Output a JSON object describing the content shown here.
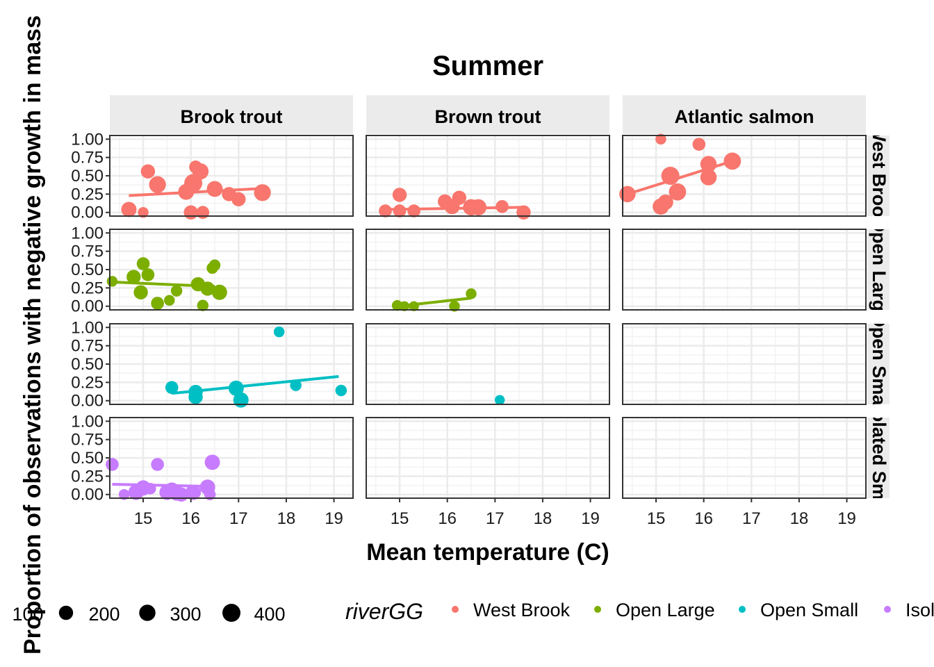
{
  "chart_data": {
    "type": "scatter",
    "title": "Summer",
    "xlabel": "Mean temperature (C)",
    "ylabel": "Proportion of observations with negative growth in mass",
    "xlim": [
      14.3,
      19.4
    ],
    "ylim": [
      -0.05,
      1.05
    ],
    "x_ticks": [
      15,
      16,
      17,
      18,
      19
    ],
    "y_ticks": [
      0.0,
      0.25,
      0.5,
      0.75,
      1.0
    ],
    "y_tick_labels": [
      "0.00",
      "0.25",
      "0.50",
      "0.75",
      "1.00"
    ],
    "grid": true,
    "facet_columns": [
      "Brook trout",
      "Brown trout",
      "Atlantic salmon"
    ],
    "facet_rows": [
      "West Brook",
      "Open Large",
      "Open Small",
      "Isolated Small"
    ],
    "facet_row_strip_labels": [
      "West Brook",
      "Open Large",
      "Open Small",
      "Isolated Small"
    ],
    "series_colors": {
      "West Brook": "#F8766D",
      "Open Large": "#7CAE00",
      "Open Small": "#00BFC4",
      "Isolated Small": "#C77CFF"
    },
    "size_legend": {
      "labels": [
        "100",
        "200",
        "300",
        "400"
      ],
      "values": [
        100,
        200,
        300,
        400
      ],
      "placement": "bottom"
    },
    "color_legend": {
      "title": "riverGG",
      "entries": [
        "West Brook",
        "Open Large",
        "Open Small",
        "Isolated Small"
      ],
      "placement": "bottom"
    },
    "panels": [
      {
        "row": 0,
        "col": 0,
        "river": "West Brook",
        "species": "Brook trout",
        "points": [
          [
            14.7,
            0.04,
            250
          ],
          [
            15.0,
            0.0,
            80
          ],
          [
            15.1,
            0.56,
            200
          ],
          [
            15.3,
            0.38,
            330
          ],
          [
            15.9,
            0.28,
            280
          ],
          [
            16.0,
            0.0,
            200
          ],
          [
            16.05,
            0.4,
            400
          ],
          [
            16.1,
            0.62,
            150
          ],
          [
            16.2,
            0.56,
            300
          ],
          [
            16.25,
            0.0,
            150
          ],
          [
            16.5,
            0.32,
            280
          ],
          [
            16.8,
            0.25,
            200
          ],
          [
            17.0,
            0.18,
            200
          ],
          [
            17.5,
            0.27,
            330
          ]
        ],
        "fit": [
          [
            14.7,
            0.23
          ],
          [
            17.6,
            0.33
          ]
        ]
      },
      {
        "row": 0,
        "col": 1,
        "river": "West Brook",
        "species": "Brown trout",
        "points": [
          [
            14.7,
            0.02,
            150
          ],
          [
            15.0,
            0.24,
            200
          ],
          [
            15.0,
            0.02,
            150
          ],
          [
            15.3,
            0.02,
            150
          ],
          [
            15.95,
            0.15,
            200
          ],
          [
            16.1,
            0.08,
            250
          ],
          [
            16.25,
            0.2,
            200
          ],
          [
            16.5,
            0.07,
            300
          ],
          [
            16.65,
            0.07,
            300
          ],
          [
            17.15,
            0.08,
            150
          ],
          [
            17.6,
            0.0,
            200
          ]
        ],
        "fit": [
          [
            14.7,
            0.04
          ],
          [
            17.6,
            0.07
          ]
        ]
      },
      {
        "row": 0,
        "col": 2,
        "river": "West Brook",
        "species": "Atlantic salmon",
        "points": [
          [
            14.4,
            0.25,
            300
          ],
          [
            15.1,
            1.0,
            80
          ],
          [
            15.1,
            0.08,
            300
          ],
          [
            15.3,
            0.5,
            400
          ],
          [
            15.45,
            0.28,
            350
          ],
          [
            15.9,
            0.93,
            150
          ],
          [
            16.1,
            0.66,
            300
          ],
          [
            16.1,
            0.48,
            300
          ],
          [
            16.6,
            0.7,
            350
          ],
          [
            15.2,
            0.14,
            250
          ]
        ],
        "fit": [
          [
            14.5,
            0.27
          ],
          [
            16.6,
            0.7
          ]
        ]
      },
      {
        "row": 1,
        "col": 0,
        "river": "Open Large",
        "species": "Brook trout",
        "points": [
          [
            14.35,
            0.34,
            80
          ],
          [
            14.8,
            0.4,
            200
          ],
          [
            14.95,
            0.19,
            200
          ],
          [
            15.0,
            0.58,
            150
          ],
          [
            15.1,
            0.43,
            150
          ],
          [
            15.3,
            0.04,
            150
          ],
          [
            15.55,
            0.08,
            80
          ],
          [
            15.7,
            0.21,
            100
          ],
          [
            16.15,
            0.3,
            200
          ],
          [
            16.25,
            0.01,
            100
          ],
          [
            16.35,
            0.24,
            200
          ],
          [
            16.45,
            0.52,
            100
          ],
          [
            16.5,
            0.56,
            100
          ],
          [
            16.6,
            0.19,
            250
          ]
        ],
        "fit": [
          [
            14.35,
            0.33
          ],
          [
            16.5,
            0.27
          ]
        ]
      },
      {
        "row": 1,
        "col": 1,
        "river": "Open Large",
        "species": "Brown trout",
        "points": [
          [
            14.95,
            0.01,
            80
          ],
          [
            15.1,
            0.0,
            60
          ],
          [
            15.3,
            0.0,
            60
          ],
          [
            16.15,
            0.0,
            80
          ],
          [
            16.5,
            0.17,
            80
          ]
        ],
        "fit": [
          [
            14.95,
            0.0
          ],
          [
            16.5,
            0.11
          ]
        ]
      },
      {
        "row": 2,
        "col": 0,
        "river": "Open Small",
        "species": "Brook trout",
        "points": [
          [
            15.6,
            0.18,
            150
          ],
          [
            16.1,
            0.12,
            200
          ],
          [
            16.1,
            0.05,
            200
          ],
          [
            16.95,
            0.17,
            250
          ],
          [
            17.05,
            0.01,
            250
          ],
          [
            17.85,
            0.94,
            80
          ],
          [
            18.2,
            0.21,
            100
          ],
          [
            19.15,
            0.14,
            100
          ]
        ],
        "fit": [
          [
            15.6,
            0.1
          ],
          [
            19.1,
            0.33
          ]
        ]
      },
      {
        "row": 2,
        "col": 1,
        "river": "Open Small",
        "species": "Brown trout",
        "points": [
          [
            17.1,
            0.01,
            60
          ]
        ],
        "fit": []
      },
      {
        "row": 3,
        "col": 0,
        "river": "Isolated Small",
        "species": "Brook trout",
        "points": [
          [
            14.35,
            0.41,
            150
          ],
          [
            14.6,
            0.0,
            80
          ],
          [
            14.85,
            0.03,
            250
          ],
          [
            15.0,
            0.09,
            250
          ],
          [
            15.15,
            0.08,
            100
          ],
          [
            15.3,
            0.41,
            150
          ],
          [
            15.5,
            0.03,
            250
          ],
          [
            15.6,
            0.06,
            250
          ],
          [
            15.7,
            0.02,
            250
          ],
          [
            15.8,
            0.0,
            200
          ],
          [
            16.05,
            0.03,
            250
          ],
          [
            16.35,
            0.1,
            250
          ],
          [
            16.4,
            0.0,
            100
          ],
          [
            16.45,
            0.44,
            250
          ]
        ],
        "fit": [
          [
            14.35,
            0.14
          ],
          [
            16.45,
            0.11
          ]
        ]
      }
    ]
  }
}
